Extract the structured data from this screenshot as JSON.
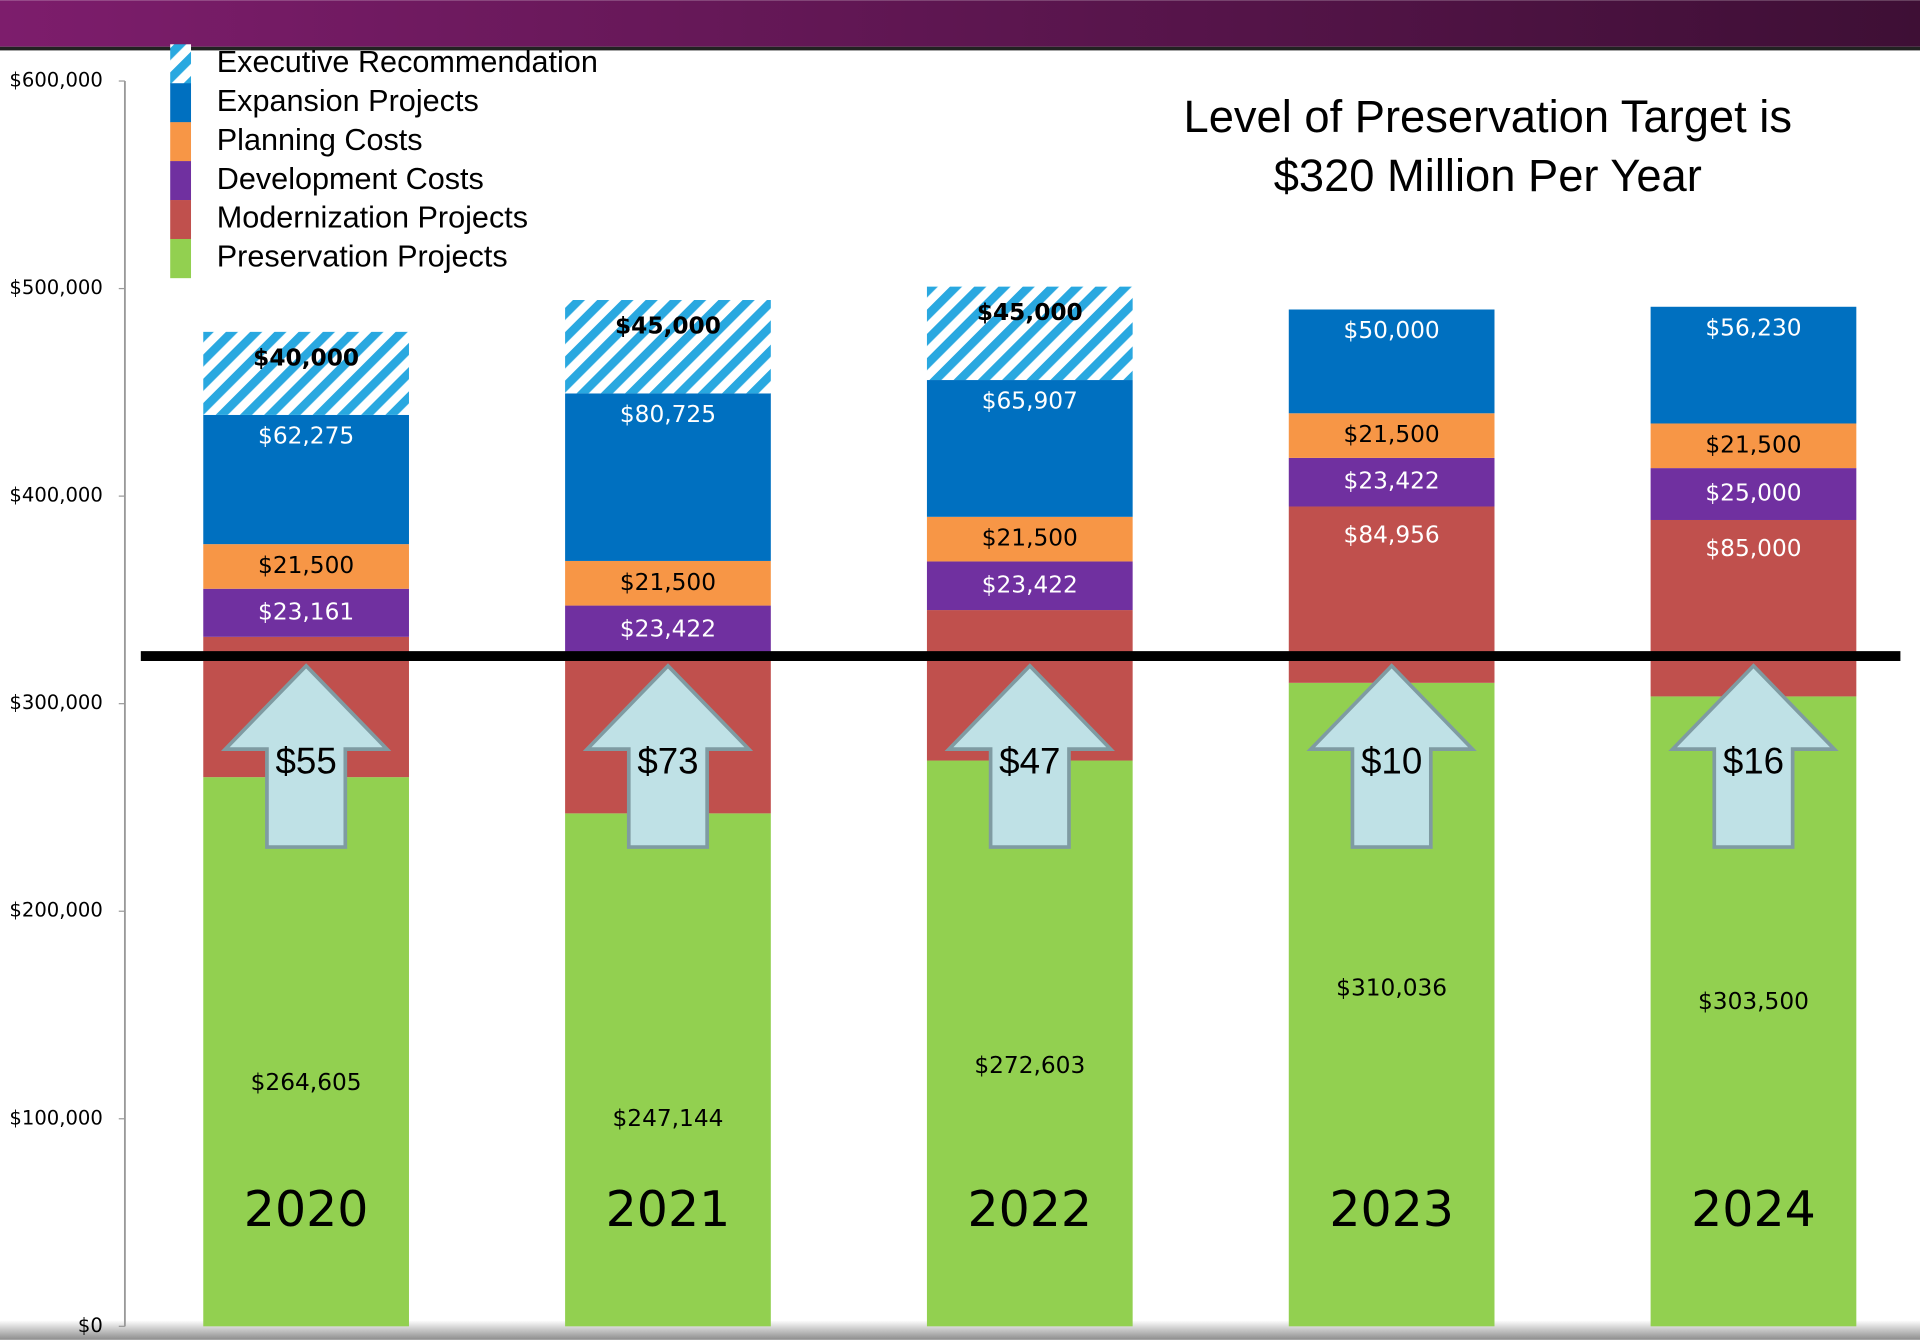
{
  "chart_data": {
    "type": "stacked_bar",
    "categories": [
      "2020",
      "2021",
      "2022",
      "2023",
      "2024"
    ],
    "series": [
      {
        "name": "Preservation Projects",
        "color": "#92d050",
        "values": [
          264605,
          247144,
          272603,
          310036,
          303500
        ],
        "value_labels": [
          "$264,605",
          "$247,144",
          "$272,603",
          "$310,036",
          "$303,500"
        ]
      },
      {
        "name": "Modernization Projects",
        "color": "#c0504d",
        "values": [
          67600,
          76700,
          72500,
          84956,
          85000
        ],
        "value_labels": [
          null,
          null,
          null,
          "$84,956",
          "$85,000"
        ]
      },
      {
        "name": "Development Costs",
        "color": "#7030a0",
        "values": [
          23161,
          23422,
          23422,
          23422,
          25000
        ],
        "value_labels": [
          "$23,161",
          "$23,422",
          "$23,422",
          "$23,422",
          "$25,000"
        ]
      },
      {
        "name": "Planning Costs",
        "color": "#f79646",
        "values": [
          21500,
          21500,
          21500,
          21500,
          21500
        ],
        "value_labels": [
          "$21,500",
          "$21,500",
          "$21,500",
          "$21,500",
          "$21,500"
        ]
      },
      {
        "name": "Expansion Projects",
        "color": "#0070c0",
        "values": [
          62275,
          80725,
          65907,
          50000,
          56230
        ],
        "value_labels": [
          "$62,275",
          "$80,725",
          "$65,907",
          "$50,000",
          "$56,230"
        ]
      },
      {
        "name": "Executive Recommendation",
        "color": "#29a8e0",
        "pattern": "hatch",
        "values": [
          40000,
          45000,
          45000,
          null,
          null
        ],
        "value_labels": [
          "$40,000",
          "$45,000",
          "$45,000",
          null,
          null
        ]
      }
    ],
    "ylim": [
      0,
      600000
    ],
    "yticks": [
      {
        "value": 0,
        "label": "$0"
      },
      {
        "value": 100000,
        "label": "$100,000"
      },
      {
        "value": 200000,
        "label": "$200,000"
      },
      {
        "value": 300000,
        "label": "$300,000"
      },
      {
        "value": 400000,
        "label": "$400,000"
      },
      {
        "value": 500000,
        "label": "$500,000"
      },
      {
        "value": 600000,
        "label": "$600,000"
      }
    ],
    "target_line": 320000,
    "annotation": [
      "Level of Preservation Target  is",
      "$320 Million Per Year"
    ],
    "arrow_labels": [
      "$55",
      "$73",
      "$47",
      "$10",
      "$16"
    ],
    "legend": "top-left"
  }
}
